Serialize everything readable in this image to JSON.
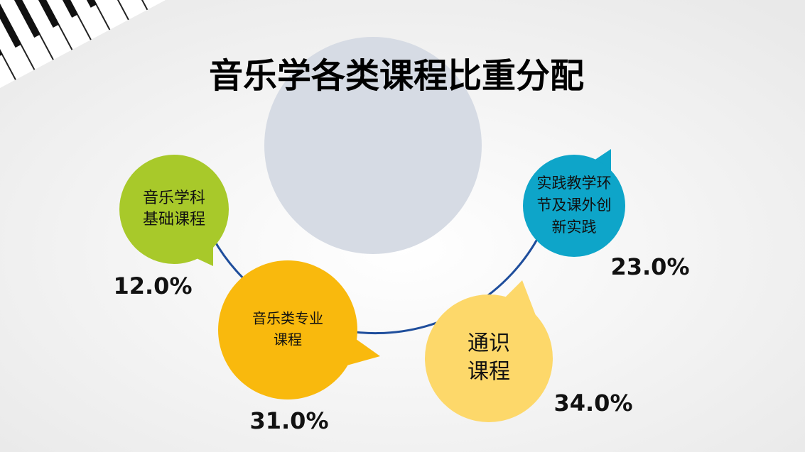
{
  "title": "音乐学各类课程比重分配",
  "items": [
    {
      "label_lines": [
        "音乐学科",
        "基础课程"
      ],
      "value": "12.0%"
    },
    {
      "label_lines": [
        "音乐类专业",
        "课程"
      ],
      "value": "31.0%"
    },
    {
      "label_lines": [
        "通识",
        "课程"
      ],
      "value": "34.0%"
    },
    {
      "label_lines": [
        "实践教学环",
        "节及课外创",
        "新实践"
      ],
      "value": "23.0%"
    }
  ]
}
